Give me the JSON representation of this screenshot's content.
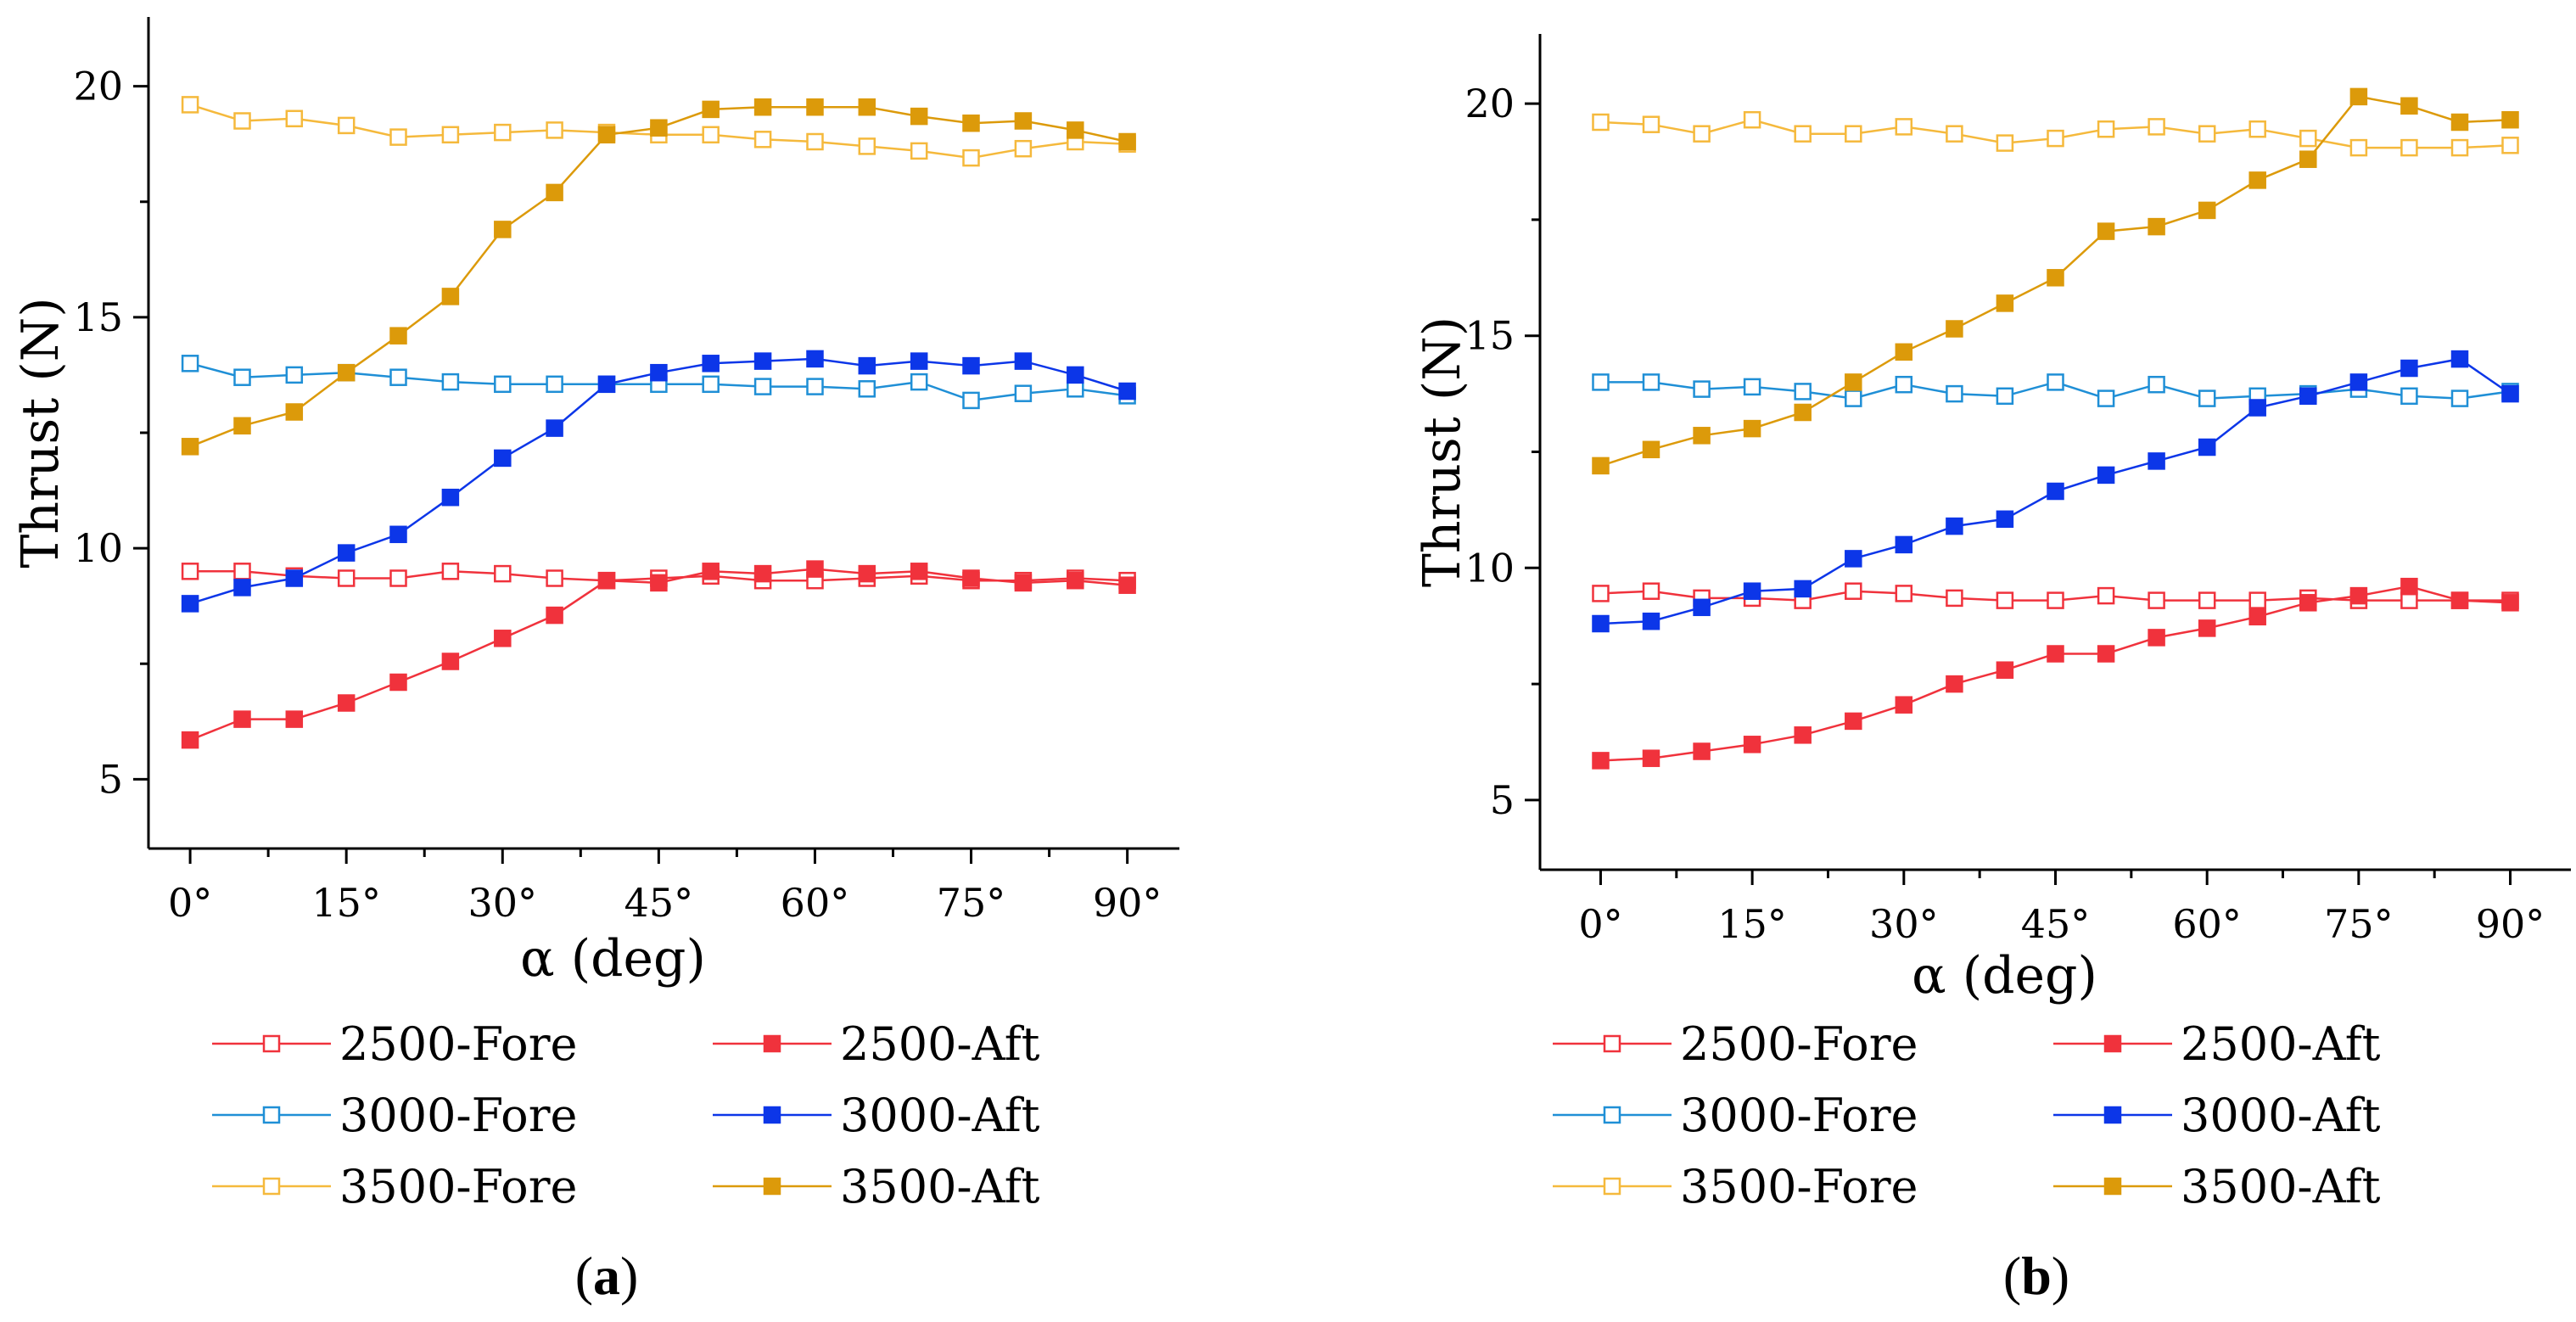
{
  "chart_data": [
    {
      "id": "a",
      "panel_label": "a",
      "type": "line",
      "xlabel": "α  (deg)",
      "ylabel": "Thrust (N)",
      "xlim": [
        -4,
        95
      ],
      "ylim": [
        3.5,
        21.5
      ],
      "xticks": [
        0,
        15,
        30,
        45,
        60,
        75,
        90
      ],
      "xtick_labels": [
        "0°",
        "15°",
        "30°",
        "45°",
        "60°",
        "75°",
        "90°"
      ],
      "yticks": [
        5,
        10,
        15,
        20
      ],
      "ytick_labels": [
        "5",
        "10",
        "15",
        "20"
      ],
      "x": [
        0,
        5,
        10,
        15,
        20,
        25,
        30,
        35,
        40,
        45,
        50,
        55,
        60,
        65,
        70,
        75,
        80,
        85,
        90
      ],
      "series": [
        {
          "name": "2500-Fore",
          "color": "#f0323c",
          "filled": false,
          "values": [
            9.5,
            9.5,
            9.4,
            9.35,
            9.35,
            9.5,
            9.45,
            9.35,
            9.3,
            9.35,
            9.4,
            9.3,
            9.3,
            9.35,
            9.4,
            9.3,
            9.3,
            9.35,
            9.3
          ]
        },
        {
          "name": "2500-Aft",
          "color": "#f0323c",
          "filled": true,
          "values": [
            5.85,
            6.3,
            6.3,
            6.65,
            7.1,
            7.55,
            8.05,
            8.55,
            9.3,
            9.25,
            9.5,
            9.45,
            9.55,
            9.45,
            9.5,
            9.35,
            9.25,
            9.3,
            9.2
          ]
        },
        {
          "name": "3000-Fore",
          "color": "#1f8fd6",
          "filled": false,
          "values": [
            14.0,
            13.7,
            13.75,
            13.8,
            13.7,
            13.6,
            13.55,
            13.55,
            13.55,
            13.55,
            13.55,
            13.5,
            13.5,
            13.45,
            13.6,
            13.2,
            13.35,
            13.45,
            13.3
          ]
        },
        {
          "name": "3000-Aft",
          "color": "#0c36e8",
          "filled": true,
          "values": [
            8.8,
            9.15,
            9.35,
            9.9,
            10.3,
            11.1,
            11.95,
            12.6,
            13.55,
            13.8,
            14.0,
            14.05,
            14.1,
            13.95,
            14.05,
            13.95,
            14.05,
            13.75,
            13.4
          ]
        },
        {
          "name": "3500-Fore",
          "color": "#f5b93c",
          "filled": false,
          "values": [
            19.6,
            19.25,
            19.3,
            19.15,
            18.9,
            18.95,
            19.0,
            19.05,
            19.0,
            18.95,
            18.95,
            18.85,
            18.8,
            18.7,
            18.6,
            18.45,
            18.65,
            18.8,
            18.75
          ]
        },
        {
          "name": "3500-Aft",
          "color": "#dc9a0a",
          "filled": true,
          "values": [
            12.2,
            12.65,
            12.95,
            13.8,
            14.6,
            15.45,
            16.9,
            17.7,
            18.95,
            19.1,
            19.5,
            19.55,
            19.55,
            19.55,
            19.35,
            19.2,
            19.25,
            19.05,
            18.8
          ]
        }
      ]
    },
    {
      "id": "b",
      "panel_label": "b",
      "type": "line",
      "xlabel": "α  (deg)",
      "ylabel": "Thrust (N)",
      "xlim": [
        -6,
        96
      ],
      "ylim": [
        3.5,
        21.5
      ],
      "xticks": [
        0,
        15,
        30,
        45,
        60,
        75,
        90
      ],
      "xtick_labels": [
        "0°",
        "15°",
        "30°",
        "45°",
        "60°",
        "75°",
        "90°"
      ],
      "yticks": [
        5,
        10,
        15,
        20
      ],
      "ytick_labels": [
        "5",
        "10",
        "15",
        "20"
      ],
      "x": [
        0,
        5,
        10,
        15,
        20,
        25,
        30,
        35,
        40,
        45,
        50,
        55,
        60,
        65,
        70,
        75,
        80,
        85,
        90
      ],
      "series": [
        {
          "name": "2500-Fore",
          "color": "#f0323c",
          "filled": false,
          "values": [
            9.45,
            9.5,
            9.35,
            9.35,
            9.3,
            9.5,
            9.45,
            9.35,
            9.3,
            9.3,
            9.4,
            9.3,
            9.3,
            9.3,
            9.35,
            9.3,
            9.3,
            9.3,
            9.3
          ]
        },
        {
          "name": "2500-Aft",
          "color": "#f0323c",
          "filled": true,
          "values": [
            5.85,
            5.9,
            6.05,
            6.2,
            6.4,
            6.7,
            7.05,
            7.5,
            7.8,
            8.15,
            8.15,
            8.5,
            8.7,
            8.95,
            9.25,
            9.4,
            9.6,
            9.3,
            9.25
          ]
        },
        {
          "name": "3000-Fore",
          "color": "#1f8fd6",
          "filled": false,
          "values": [
            14.0,
            14.0,
            13.85,
            13.9,
            13.8,
            13.65,
            13.95,
            13.75,
            13.7,
            14.0,
            13.65,
            13.95,
            13.65,
            13.7,
            13.75,
            13.85,
            13.7,
            13.65,
            13.8
          ]
        },
        {
          "name": "3000-Aft",
          "color": "#0c36e8",
          "filled": true,
          "values": [
            8.8,
            8.85,
            9.15,
            9.5,
            9.55,
            10.2,
            10.5,
            10.9,
            11.05,
            11.65,
            12.0,
            12.3,
            12.6,
            13.45,
            13.7,
            14.0,
            14.3,
            14.5,
            13.75
          ]
        },
        {
          "name": "3500-Fore",
          "color": "#f5b93c",
          "filled": false,
          "values": [
            19.6,
            19.55,
            19.35,
            19.65,
            19.35,
            19.35,
            19.5,
            19.35,
            19.15,
            19.25,
            19.45,
            19.5,
            19.35,
            19.45,
            19.25,
            19.05,
            19.05,
            19.05,
            19.1
          ]
        },
        {
          "name": "3500-Aft",
          "color": "#dc9a0a",
          "filled": true,
          "values": [
            12.2,
            12.55,
            12.85,
            13.0,
            13.35,
            14.0,
            14.65,
            15.15,
            15.7,
            16.25,
            17.25,
            17.35,
            17.7,
            18.35,
            18.8,
            20.15,
            19.95,
            19.6,
            19.65
          ]
        }
      ]
    }
  ]
}
